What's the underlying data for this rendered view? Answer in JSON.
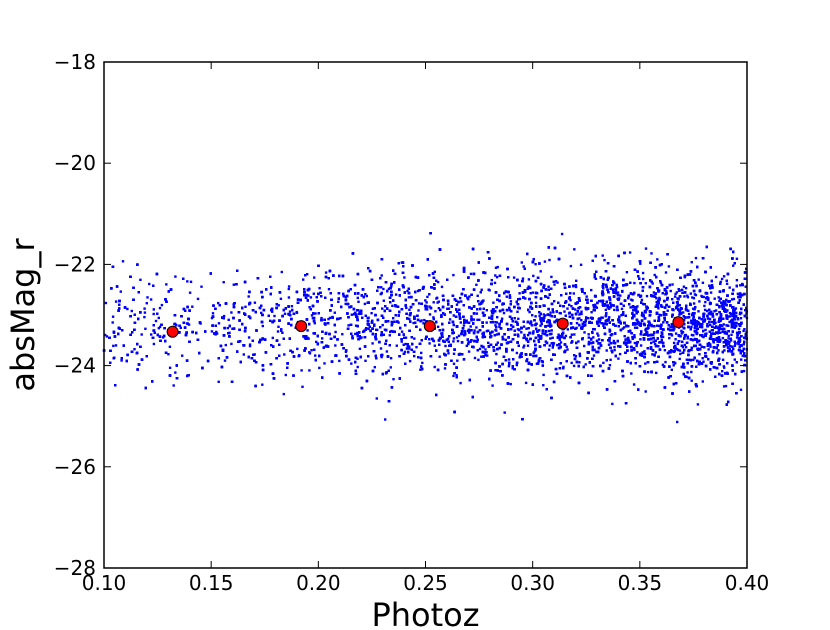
{
  "chart_data": {
    "type": "scatter",
    "title": "",
    "xlabel": "Photoz",
    "ylabel": "absMag_r",
    "xlim": [
      0.1,
      0.4
    ],
    "ylim": [
      -28,
      -18
    ],
    "y_inverted": true,
    "grid": false,
    "x_ticks": [
      0.1,
      0.15,
      0.2,
      0.25,
      0.3,
      0.35,
      0.4
    ],
    "x_tick_labels": [
      "0.10",
      "0.15",
      "0.20",
      "0.25",
      "0.30",
      "0.35",
      "0.40"
    ],
    "y_ticks": [
      -18,
      -20,
      -22,
      -24,
      -26,
      -28
    ],
    "y_tick_labels": [
      "−18",
      "−20",
      "−22",
      "−24",
      "−26",
      "−28"
    ],
    "colors": {
      "points": "#0000ff",
      "means": "#ff0000",
      "mean_edge": "#000000"
    },
    "background_points": {
      "note_distribution": "dense cloud of galaxies",
      "x_range": [
        0.1,
        0.4
      ],
      "density_increasing_with_x": true,
      "y_center": -23.2,
      "y_spread": 0.55,
      "y_min_observed": -25.7,
      "y_max_observed": -21.35
    },
    "binned_means": [
      {
        "x": 0.132,
        "y": -23.33
      },
      {
        "x": 0.192,
        "y": -23.22
      },
      {
        "x": 0.252,
        "y": -23.22
      },
      {
        "x": 0.314,
        "y": -23.17
      },
      {
        "x": 0.368,
        "y": -23.14
      }
    ]
  }
}
